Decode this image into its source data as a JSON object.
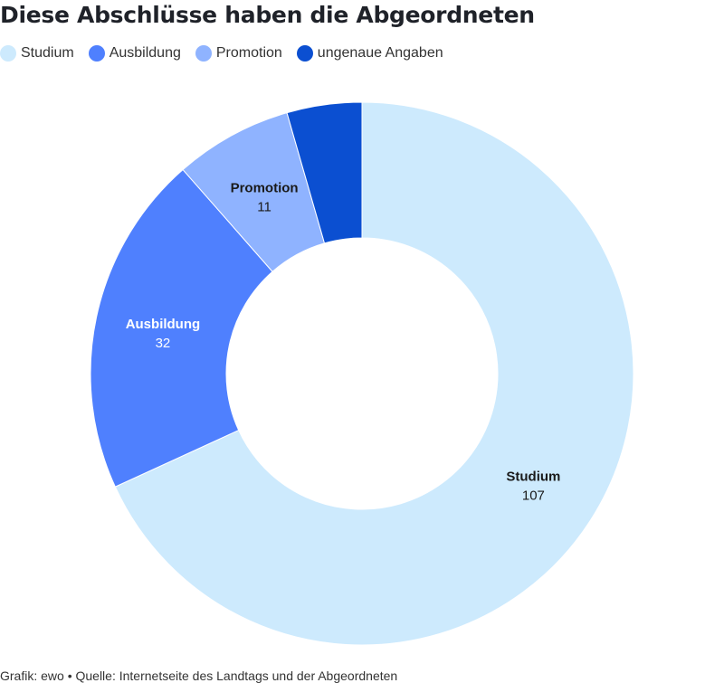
{
  "title": "Diese Abschlüsse haben die Abgeordneten",
  "chart_data": {
    "type": "pie",
    "donut": true,
    "legend_position": "top-left",
    "slices": [
      {
        "label": "Studium",
        "value": 107,
        "color": "#cdeafd",
        "text_color": "#1a1a1a"
      },
      {
        "label": "Ausbildung",
        "value": 32,
        "color": "#4f80fe",
        "text_color": "#ffffff"
      },
      {
        "label": "Promotion",
        "value": 11,
        "color": "#8fb3ff",
        "text_color": "#1a1a1a"
      },
      {
        "label": "ungenaue Angaben",
        "value": 7,
        "color": "#0b4fd1",
        "text_color": "#ffffff",
        "show_label": false
      }
    ]
  },
  "footer": "Grafik: ewo • Quelle: Internetseite des Landtags und der Abgeordneten"
}
